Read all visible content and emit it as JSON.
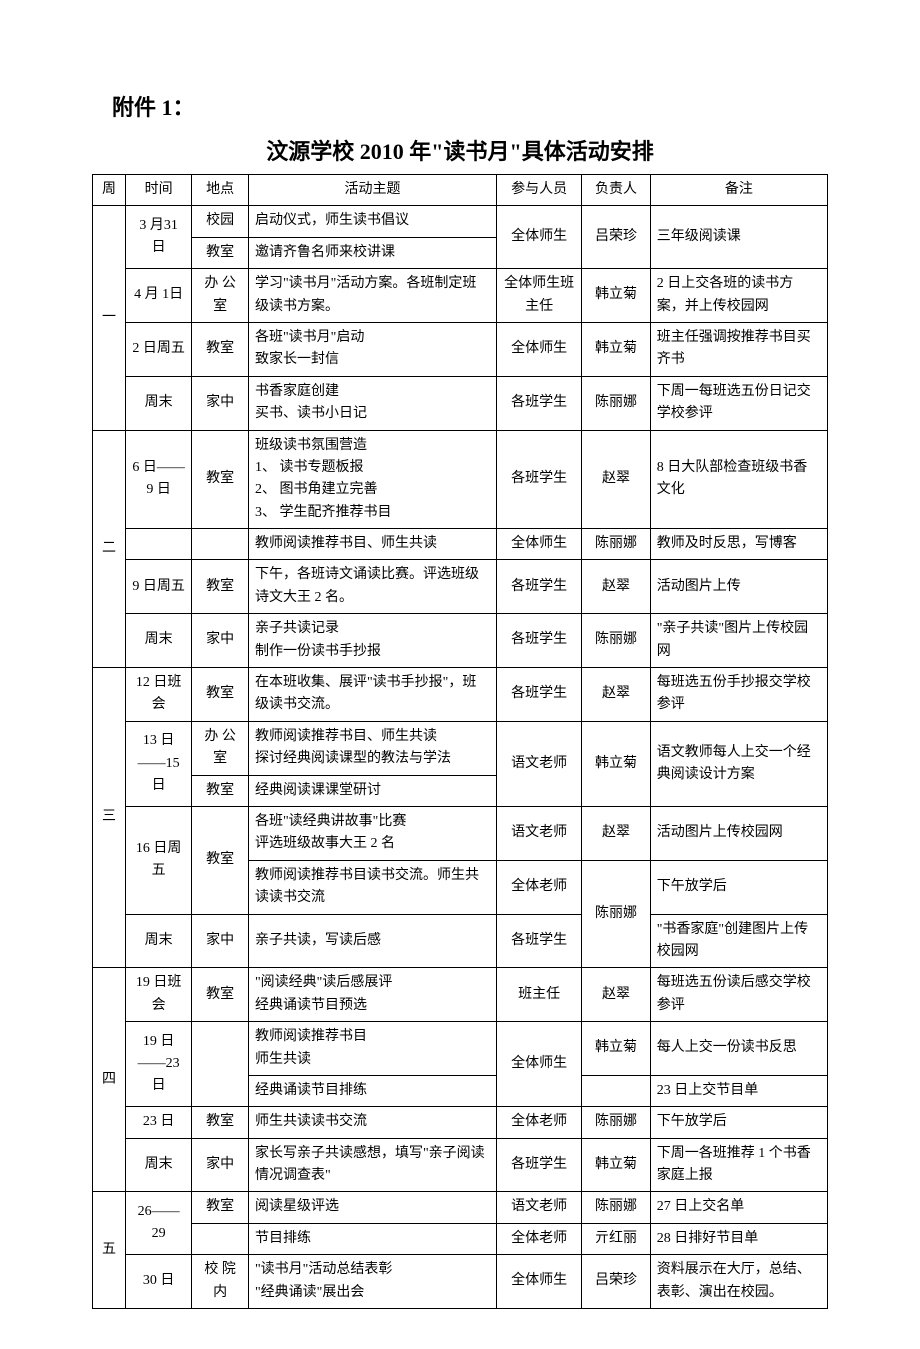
{
  "header": {
    "attachment": "附件 1：",
    "title": "汶源学校 2010 年\"读书月\"具体活动安排"
  },
  "columns": {
    "week": "周",
    "time": "时间",
    "place": "地点",
    "topic": "活动主题",
    "people": "参与人员",
    "person": "负责人",
    "note": "备注"
  },
  "weeks": {
    "w1": "一",
    "w2": "二",
    "w3": "三",
    "w4": "四",
    "w5": "五"
  },
  "rows": {
    "r1": {
      "time": "3 月31 日",
      "place1": "校园",
      "place2": "教室",
      "topic1": "启动仪式，师生读书倡议",
      "topic2": "邀请齐鲁名师来校讲课",
      "people": "全体师生",
      "person": "吕荣珍",
      "note": "三年级阅读课"
    },
    "r2": {
      "time": "4 月 1日",
      "place": "办 公室",
      "topic": "学习\"读书月\"活动方案。各班制定班级读书方案。",
      "people": "全体师生班主任",
      "person": "韩立菊",
      "note": "2 日上交各班的读书方案，并上传校园网"
    },
    "r3": {
      "time": "2 日周五",
      "place": "教室",
      "topic": "各班\"读书月\"启动\n致家长一封信",
      "people": "全体师生",
      "person": "韩立菊",
      "note": "班主任强调按推荐书目买齐书"
    },
    "r4": {
      "time": "周末",
      "place": "家中",
      "topic": "书香家庭创建\n买书、读书小日记",
      "people": "各班学生",
      "person": "陈丽娜",
      "note": "下周一每班选五份日记交学校参评"
    },
    "r5": {
      "time": "6 日——9 日",
      "place": "教室",
      "topic": "班级读书氛围营造\n1、 读书专题板报\n2、 图书角建立完善\n3、 学生配齐推荐书目",
      "people": "各班学生",
      "person": "赵翠",
      "note": "8 日大队部检查班级书香文化"
    },
    "r6": {
      "topic": "教师阅读推荐书目、师生共读",
      "people": "全体师生",
      "person": "陈丽娜",
      "note": "教师及时反思，写博客"
    },
    "r7": {
      "time": "9 日周五",
      "place": "教室",
      "topic": "下午，各班诗文诵读比赛。评选班级诗文大王 2 名。",
      "people": "各班学生",
      "person": "赵翠",
      "note": "活动图片上传"
    },
    "r8": {
      "time": "周末",
      "place": "家中",
      "topic": "亲子共读记录\n制作一份读书手抄报",
      "people": "各班学生",
      "person": "陈丽娜",
      "note": "\"亲子共读\"图片上传校园网"
    },
    "r9": {
      "time": "12 日班会",
      "place": "教室",
      "topic": "在本班收集、展评\"读书手抄报\"，班级读书交流。",
      "people": "各班学生",
      "person": "赵翠",
      "note": "每班选五份手抄报交学校参评"
    },
    "r10": {
      "time": "13 日——15 日",
      "place1": "办 公室",
      "place2": "教室",
      "topic1": "教师阅读推荐书目、师生共读\n探讨经典阅读课型的教法与学法",
      "topic2": "经典阅读课课堂研讨",
      "people": "语文老师",
      "person": "韩立菊",
      "note": "语文教师每人上交一个经典阅读设计方案"
    },
    "r11": {
      "time": "16 日周五",
      "place": "教室",
      "topic1": "各班\"读经典讲故事\"比赛\n评选班级故事大王 2 名",
      "people1": "语文老师",
      "person1": "赵翠",
      "note1": "活动图片上传校园网",
      "topic2": "教师阅读推荐书目读书交流。师生共读读书交流",
      "people2": "全体老师",
      "note2": "下午放学后"
    },
    "r12": {
      "time": "周末",
      "place": "家中",
      "topic": "亲子共读，写读后感",
      "people": "各班学生",
      "person": "陈丽娜",
      "note": "\"书香家庭\"创建图片上传校园网"
    },
    "r13": {
      "time": "19 日班会",
      "place": "教室",
      "topic": "\"阅读经典\"读后感展评\n经典诵读节目预选",
      "people": "班主任",
      "person": "赵翠",
      "note": "每班选五份读后感交学校参评"
    },
    "r14": {
      "time": "19 日——23 日",
      "topic1": "教师阅读推荐书目\n师生共读",
      "people": "全体师生",
      "person": "韩立菊",
      "note1": "每人上交一份读书反思",
      "topic2": "经典诵读节目排练",
      "note2": "23 日上交节目单"
    },
    "r15": {
      "time": "23 日",
      "place": "教室",
      "topic": "师生共读读书交流",
      "people": "全体老师",
      "person": "陈丽娜",
      "note": "下午放学后"
    },
    "r16": {
      "time": "周末",
      "place": "家中",
      "topic": "家长写亲子共读感想，填写\"亲子阅读情况调查表\"",
      "people": "各班学生",
      "person": "韩立菊",
      "note": "下周一各班推荐 1 个书香家庭上报"
    },
    "r17": {
      "time": "26——29",
      "place": "教室",
      "topic1": "阅读星级评选",
      "people1": "语文老师",
      "person1": "陈丽娜",
      "note1": "27 日上交名单",
      "topic2": "节目排练",
      "people2": "全体老师",
      "person2": "亓红丽",
      "note2": "28 日排好节目单"
    },
    "r18": {
      "time": "30 日",
      "place": "校 院内",
      "topic": "\"读书月\"活动总结表彰\n\"经典诵读\"展出会",
      "people": "全体师生",
      "person": "吕荣珍",
      "note": "资料展示在大厅，总结、表彰、演出在校园。"
    }
  }
}
